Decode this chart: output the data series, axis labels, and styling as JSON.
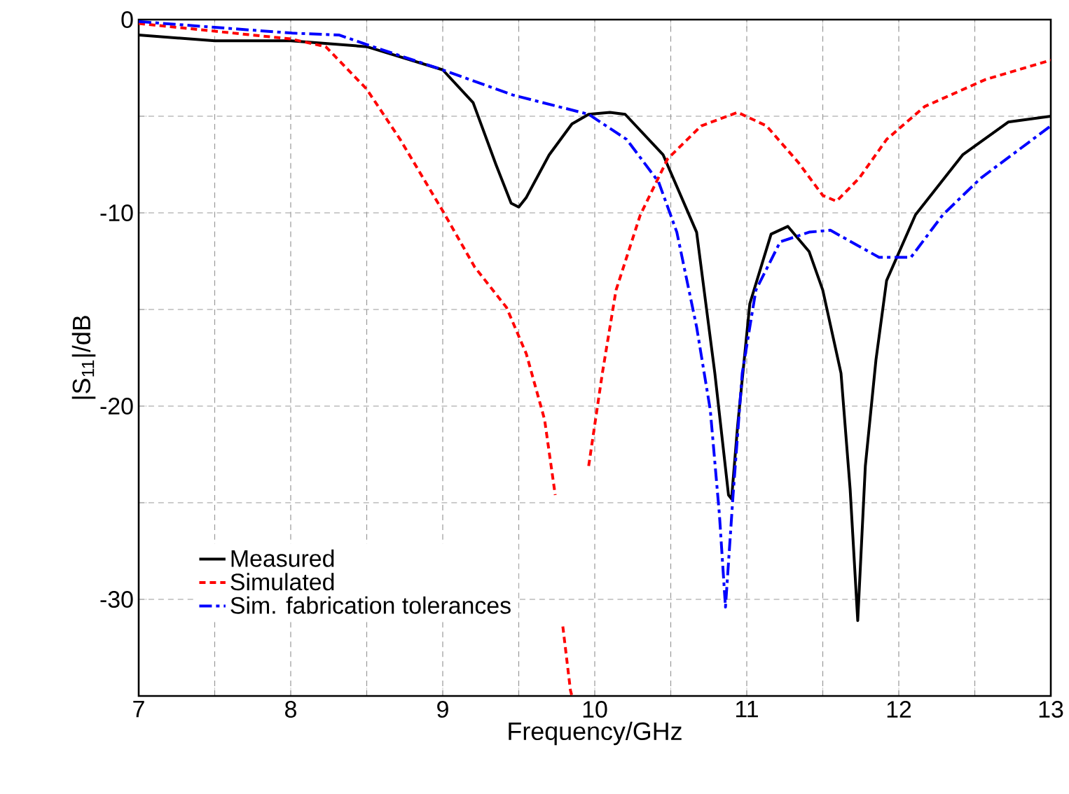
{
  "chart_data": {
    "type": "line",
    "xlabel": "Frequency/GHz",
    "ylabel": "|S$_{11}$|/dB",
    "xlim": [
      7,
      13
    ],
    "ylim": [
      -35,
      0
    ],
    "xticks": [
      7,
      {
        "value": 7.5,
        "label": null
      },
      8,
      {
        "value": 8.5,
        "label": null
      },
      9,
      {
        "value": 9.5,
        "label": null
      },
      10,
      {
        "value": 10.5,
        "label": null
      },
      11,
      {
        "value": 11.5,
        "label": null
      },
      12,
      {
        "value": 12.5,
        "label": null
      },
      13
    ],
    "yticks": [
      {
        "value": -35,
        "label": null
      },
      -30,
      {
        "value": -25,
        "label": null
      },
      -20,
      {
        "value": -15,
        "label": null
      },
      -10,
      {
        "value": -5,
        "label": null
      },
      0
    ],
    "grid": true,
    "legend": "bottom left",
    "marker": "none",
    "series": [
      {
        "name": "Measured",
        "color": "#000000",
        "line_style": "solid",
        "x": [
          7.0,
          7.5,
          8.0,
          8.5,
          9.0,
          9.2,
          9.35,
          9.45,
          9.5,
          9.55,
          9.7,
          9.85,
          9.96,
          10.1,
          10.2,
          10.45,
          10.67,
          10.79,
          10.88,
          10.9,
          10.94,
          11.02,
          11.16,
          11.27,
          11.41,
          11.5,
          11.62,
          11.68,
          11.73,
          11.78,
          11.85,
          11.92,
          12.11,
          12.42,
          12.72,
          13.0
        ],
        "values": [
          -0.8,
          -1.1,
          -1.1,
          -1.4,
          -2.6,
          -4.3,
          -7.5,
          -9.5,
          -9.7,
          -9.2,
          -7.0,
          -5.4,
          -4.9,
          -4.8,
          -4.9,
          -7.0,
          -11.0,
          -18.3,
          -24.6,
          -24.8,
          -21.0,
          -14.7,
          -11.1,
          -10.7,
          -12.0,
          -14.0,
          -18.3,
          -24.3,
          -31.1,
          -23.1,
          -17.6,
          -13.5,
          -10.1,
          -7.0,
          -5.3,
          -5.0
        ]
      },
      {
        "name": "Simulated",
        "color": "#ff0000",
        "line_style": "dashed",
        "x": [
          7.0,
          7.5,
          8.0,
          8.23,
          8.5,
          8.72,
          9.0,
          9.21,
          9.42,
          9.55,
          9.67,
          9.74,
          9.77,
          9.79,
          9.84,
          9.85,
          9.9,
          9.96,
          10.05,
          10.14,
          10.3,
          10.48,
          10.7,
          10.94,
          11.13,
          11.34,
          11.5,
          11.59,
          11.74,
          11.92,
          12.17,
          12.57,
          13.0
        ],
        "values": [
          -0.2,
          -0.6,
          -1.0,
          -1.4,
          -3.6,
          -6.2,
          -9.9,
          -12.8,
          -14.9,
          -17.3,
          -20.7,
          -24.6,
          null,
          -31.4,
          -34.7,
          -35,
          null,
          -23.1,
          -18.3,
          -14.0,
          -10.1,
          -7.2,
          -5.5,
          -4.8,
          -5.5,
          -7.4,
          -9.1,
          -9.4,
          -8.2,
          -6.2,
          -4.5,
          -3.1,
          -2.1
        ]
      },
      {
        "name": "Sim. fabrication tolerances",
        "color": "#0000ff",
        "line_style": "dashdot",
        "x": [
          7.0,
          7.5,
          8.01,
          8.32,
          8.54,
          9.0,
          9.46,
          9.96,
          10.21,
          10.42,
          10.54,
          10.67,
          10.76,
          10.82,
          10.86,
          10.91,
          10.97,
          11.06,
          11.22,
          11.41,
          11.55,
          11.87,
          12.08,
          12.29,
          12.54,
          13.0
        ],
        "values": [
          -0.1,
          -0.4,
          -0.7,
          -0.8,
          -1.4,
          -2.6,
          -3.9,
          -4.9,
          -6.2,
          -8.4,
          -11.0,
          -15.9,
          -20.2,
          -25.6,
          -30.4,
          -24.6,
          -18.3,
          -14.0,
          -11.5,
          -11.0,
          -10.9,
          -12.3,
          -12.3,
          -10.1,
          -8.2,
          -5.5
        ]
      }
    ]
  }
}
